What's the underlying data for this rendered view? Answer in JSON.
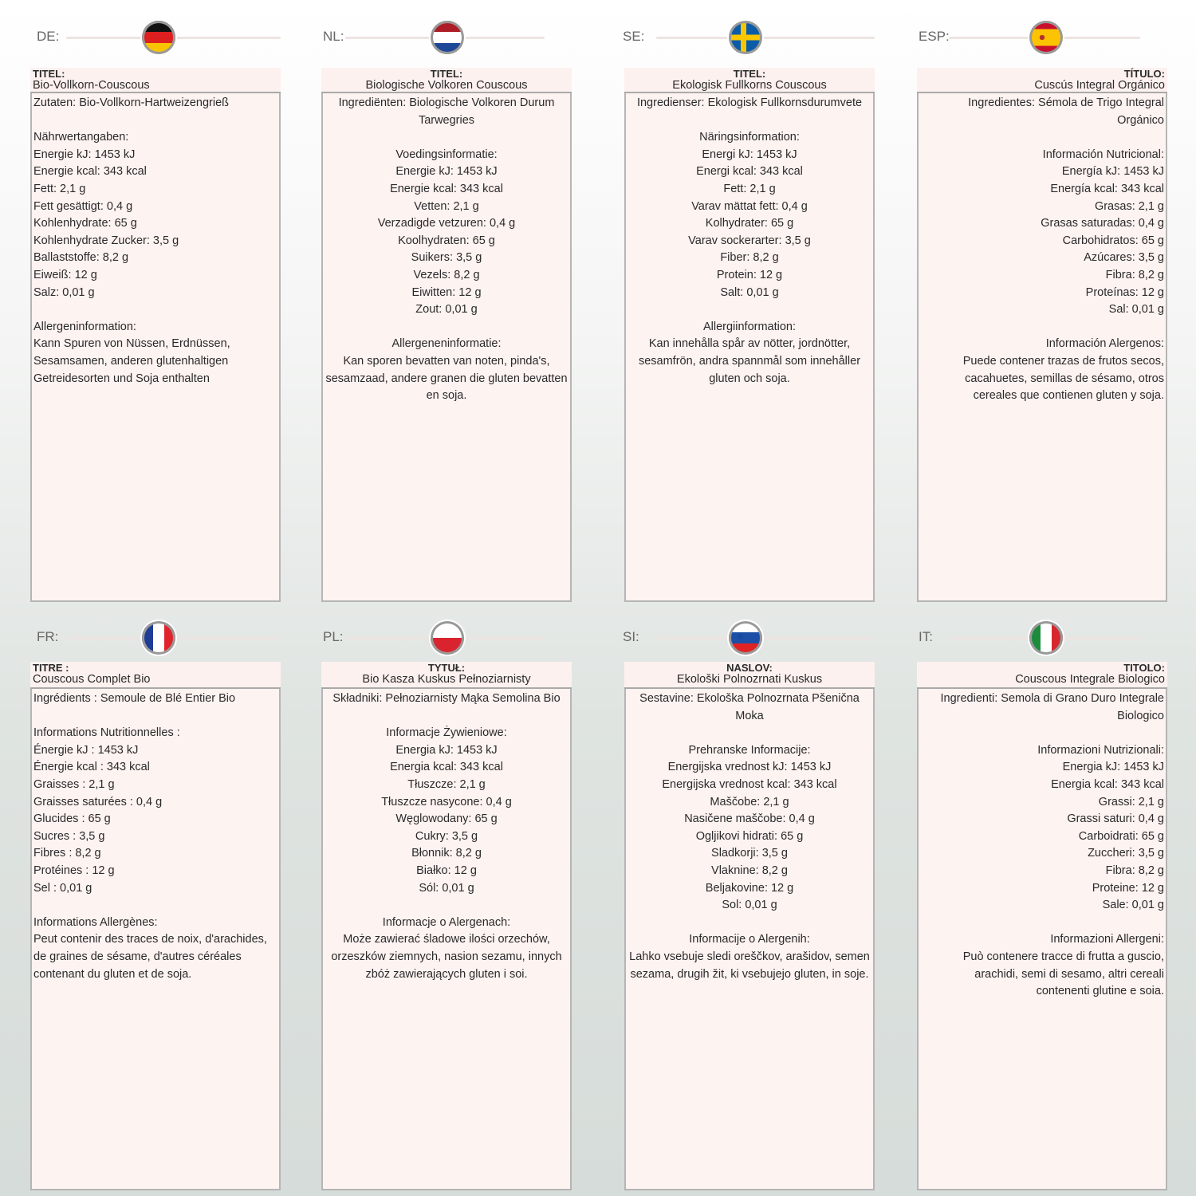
{
  "panels": [
    {
      "code": "DE:",
      "flag": "germany-flag",
      "align": "left",
      "title_label": "TITEL:",
      "title": "Bio-Vollkorn-Couscous",
      "lines": [
        "Zutaten: Bio-Vollkorn-Hartweizengrieß",
        "",
        "Nährwertangaben:",
        "Energie kJ: 1453 kJ",
        "Energie kcal: 343 kcal",
        "Fett: 2,1 g",
        "Fett gesättigt: 0,4 g",
        "Kohlenhydrate: 65 g",
        "Kohlenhydrate Zucker: 3,5 g",
        "Ballaststoffe: 8,2 g",
        "Eiweiß: 12 g",
        "Salz: 0,01 g",
        "",
        "Allergeninformation:",
        "Kann Spuren von Nüssen, Erdnüssen, Sesamsamen, anderen glutenhaltigen Getreidesorten und Soja enthalten"
      ]
    },
    {
      "code": "NL:",
      "flag": "netherlands-flag",
      "align": "center",
      "title_label": "TITEL:",
      "title": "Biologische Volkoren Couscous",
      "lines": [
        "Ingrediënten: Biologische Volkoren Durum Tarwegries",
        "",
        "Voedingsinformatie:",
        "Energie kJ: 1453 kJ",
        "Energie kcal: 343 kcal",
        "Vetten: 2,1 g",
        "Verzadigde vetzuren: 0,4 g",
        "Koolhydraten: 65 g",
        "Suikers: 3,5 g",
        "Vezels: 8,2 g",
        "Eiwitten: 12 g",
        "Zout: 0,01 g",
        "",
        "Allergeneninformatie:",
        "Kan sporen bevatten van noten, pinda's, sesamzaad, andere granen die gluten bevatten en soja."
      ]
    },
    {
      "code": "SE:",
      "flag": "sweden-flag",
      "align": "center",
      "title_label": "TITEL:",
      "title": "Ekologisk Fullkorns Couscous",
      "lines": [
        "Ingredienser: Ekologisk Fullkornsdurumvete",
        "",
        "Näringsinformation:",
        "Energi kJ: 1453 kJ",
        "Energi kcal: 343 kcal",
        "Fett: 2,1 g",
        "Varav mättat fett: 0,4 g",
        "Kolhydrater: 65 g",
        "Varav sockerarter: 3,5 g",
        "Fiber: 8,2 g",
        "Protein: 12 g",
        "Salt: 0,01 g",
        "",
        "Allergiinformation:",
        "Kan innehålla spår av nötter, jordnötter, sesamfrön, andra spannmål som innehåller gluten och soja."
      ]
    },
    {
      "code": "ESP:",
      "flag": "spain-flag",
      "align": "right",
      "title_label": "TÍTULO:",
      "title": "Cuscús Integral Orgánico",
      "lines": [
        "Ingredientes: Sémola de Trigo Integral Orgánico",
        "",
        "Información Nutricional:",
        "Energía kJ: 1453 kJ",
        "Energía kcal: 343 kcal",
        "Grasas: 2,1 g",
        "Grasas saturadas: 0,4 g",
        "Carbohidratos: 65 g",
        "Azúcares: 3,5 g",
        "Fibra: 8,2 g",
        "Proteínas: 12 g",
        "Sal: 0,01 g",
        "",
        "Información Alergenos:",
        "Puede contener trazas de frutos secos, cacahuetes, semillas de sésamo, otros cereales que contienen gluten y soja."
      ]
    },
    {
      "code": "FR:",
      "flag": "france-flag",
      "align": "left",
      "title_label": "TITRE :",
      "title": "Couscous Complet Bio",
      "lines": [
        "Ingrédients : Semoule de Blé Entier Bio",
        "",
        "Informations Nutritionnelles :",
        "Énergie kJ : 1453 kJ",
        "Énergie kcal : 343 kcal",
        "Graisses : 2,1 g",
        "Graisses saturées : 0,4 g",
        "Glucides : 65 g",
        "Sucres : 3,5 g",
        "Fibres : 8,2 g",
        "Protéines : 12 g",
        "Sel : 0,01 g",
        "",
        "Informations Allergènes:",
        "Peut contenir des traces de noix, d'arachides, de graines de sésame, d'autres céréales contenant du gluten et de soja."
      ]
    },
    {
      "code": "PL:",
      "flag": "poland-flag",
      "align": "center",
      "title_label": "TYTUŁ:",
      "title": "Bio Kasza Kuskus Pełnoziarnisty",
      "lines": [
        "Składniki: Pełnoziarnisty Mąka Semolina Bio",
        "",
        "Informacje Żywieniowe:",
        "Energia kJ: 1453 kJ",
        "Energia kcal: 343 kcal",
        "Tłuszcze: 2,1 g",
        "Tłuszcze nasycone: 0,4 g",
        "Węglowodany: 65 g",
        "Cukry: 3,5 g",
        "Błonnik: 8,2 g",
        "Białko: 12 g",
        "Sól: 0,01 g",
        "",
        "Informacje o Alergenach:",
        "Może zawierać śladowe ilości orzechów, orzeszków ziemnych, nasion sezamu, innych zbóż zawierających gluten i soi."
      ]
    },
    {
      "code": "SI:",
      "flag": "slovenia-flag",
      "align": "center",
      "title_label": "NASLOV:",
      "title": "Ekološki Polnozrnati Kuskus",
      "lines": [
        "Sestavine: Ekološka Polnozrnata Pšenična Moka",
        "",
        "Prehranske Informacije:",
        "Energijska vrednost kJ: 1453 kJ",
        "Energijska vrednost kcal: 343 kcal",
        "Maščobe: 2,1 g",
        "Nasičene maščobe: 0,4 g",
        "Ogljikovi hidrati: 65 g",
        "Sladkorji: 3,5 g",
        "Vlaknine: 8,2 g",
        "Beljakovine: 12 g",
        "Sol: 0,01 g",
        "",
        "Informacije o Alergenih:",
        "Lahko vsebuje sledi oreščkov, arašidov, semen sezama, drugih žit, ki vsebujejo gluten, in soje."
      ]
    },
    {
      "code": "IT:",
      "flag": "italy-flag",
      "align": "right",
      "title_label": "TITOLO:",
      "title": "Couscous Integrale Biologico",
      "lines": [
        "Ingredienti: Semola di Grano Duro Integrale Biologico",
        "",
        "Informazioni Nutrizionali:",
        "Energia kJ: 1453 kJ",
        "Energia kcal: 343 kcal",
        "Grassi: 2,1 g",
        "Grassi saturi: 0,4 g",
        "Carboidrati: 65 g",
        "Zuccheri: 3,5 g",
        "Fibra: 8,2 g",
        "Proteine: 12 g",
        "Sale: 0,01 g",
        "",
        "Informazioni Allergeni:",
        "Può contenere tracce di frutta a guscio, arachidi, semi di sesamo, altri cereali contenenti glutine e soia."
      ]
    }
  ]
}
